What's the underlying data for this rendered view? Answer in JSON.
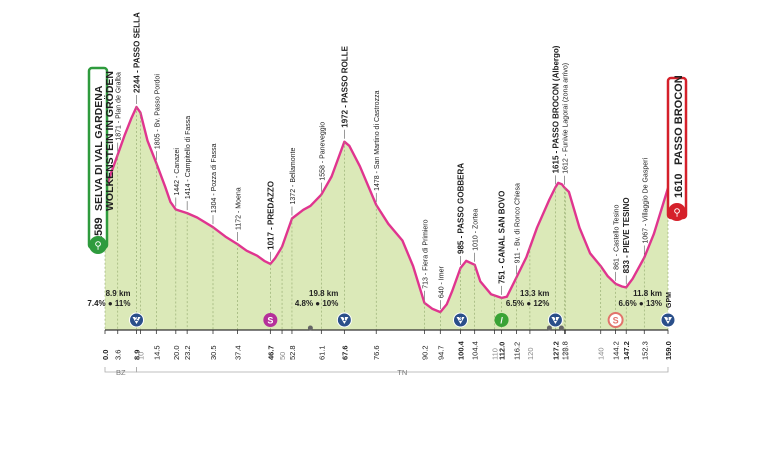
{
  "start": {
    "elevation": "1589",
    "name_line1": "SELVA DI VAL GARDENA",
    "name_line2": "WOLKENSTEIN IN GRÖDEN",
    "color": "#2e9b3d"
  },
  "finish": {
    "elevation": "1610",
    "name": "PASSO BROCON",
    "color": "#d5202a"
  },
  "colors": {
    "profile_fill": "#dbe9b8",
    "profile_line": "#e0358f",
    "axis": "#333333",
    "climb_badge": "#2a4f8a"
  },
  "chart_data": {
    "type": "area",
    "title": "",
    "xlabel": "",
    "ylabel": "",
    "xlim": [
      0,
      159
    ],
    "ylim": [
      500,
      2400
    ],
    "profile": {
      "x": [
        0,
        1.5,
        3.6,
        5.5,
        7.5,
        8.9,
        10,
        12,
        14.5,
        17,
        18.5,
        20,
        23.2,
        26,
        30.5,
        34,
        37.4,
        40,
        43,
        45,
        46.7,
        48,
        50,
        52.8,
        56,
        58,
        61.1,
        64,
        67.6,
        69,
        72,
        76.6,
        80,
        84,
        87,
        90.2,
        92.5,
        94.7,
        96.5,
        98,
        100.4,
        102,
        104.4,
        106,
        109,
        112,
        113.5,
        116.2,
        119,
        122,
        125.5,
        127.2,
        128,
        129,
        129.8,
        131,
        134,
        137,
        140,
        142,
        144.2,
        146,
        147.2,
        149,
        152.3,
        155,
        157,
        159
      ],
      "y": [
        1589,
        1710,
        1871,
        2020,
        2160,
        2244,
        2200,
        1980,
        1805,
        1620,
        1500,
        1442,
        1414,
        1380,
        1304,
        1230,
        1172,
        1120,
        1080,
        1040,
        1017,
        1060,
        1150,
        1372,
        1440,
        1470,
        1558,
        1700,
        1972,
        1940,
        1780,
        1478,
        1330,
        1200,
        1000,
        713,
        665,
        640,
        700,
        800,
        985,
        1040,
        1010,
        880,
        780,
        751,
        760,
        911,
        1070,
        1300,
        1520,
        1615,
        1650,
        1640,
        1612,
        1580,
        1300,
        1100,
        1000,
        920,
        861,
        840,
        833,
        900,
        1067,
        1250,
        1430,
        1610
      ]
    },
    "distance_ticks": [
      {
        "km": 0,
        "label": "0.0",
        "bold": true
      },
      {
        "km": 3.6,
        "label": "3.6",
        "bold": false
      },
      {
        "km": 8.9,
        "label": "8.9",
        "bold": true
      },
      {
        "km": 10,
        "label": "10",
        "bold": false,
        "minor": true
      },
      {
        "km": 14.5,
        "label": "14.5",
        "bold": false
      },
      {
        "km": 20,
        "label": "20.0",
        "bold": false
      },
      {
        "km": 23.2,
        "label": "23.2",
        "bold": false
      },
      {
        "km": 30.5,
        "label": "30.5",
        "bold": false
      },
      {
        "km": 37.4,
        "label": "37.4",
        "bold": false
      },
      {
        "km": 46.7,
        "label": "46.7",
        "bold": true
      },
      {
        "km": 50,
        "label": "50",
        "bold": false,
        "minor": true
      },
      {
        "km": 52.8,
        "label": "52.8",
        "bold": false
      },
      {
        "km": 61.1,
        "label": "61.1",
        "bold": false
      },
      {
        "km": 67.6,
        "label": "67.6",
        "bold": true
      },
      {
        "km": 76.6,
        "label": "76.6",
        "bold": false
      },
      {
        "km": 90.2,
        "label": "90.2",
        "bold": false
      },
      {
        "km": 94.7,
        "label": "94.7",
        "bold": false
      },
      {
        "km": 100.4,
        "label": "100.4",
        "bold": true
      },
      {
        "km": 104.4,
        "label": "104.4",
        "bold": false
      },
      {
        "km": 110,
        "label": "110",
        "bold": false,
        "minor": true
      },
      {
        "km": 112,
        "label": "112.0",
        "bold": true
      },
      {
        "km": 116.2,
        "label": "116.2",
        "bold": false
      },
      {
        "km": 120,
        "label": "120",
        "bold": false,
        "minor": true
      },
      {
        "km": 127.2,
        "label": "127.2",
        "bold": true
      },
      {
        "km": 129.8,
        "label": "129.8",
        "bold": false
      },
      {
        "km": 130,
        "label": "130",
        "bold": false,
        "minor": true
      },
      {
        "km": 140,
        "label": "140",
        "bold": false,
        "minor": true
      },
      {
        "km": 144.2,
        "label": "144.2",
        "bold": false
      },
      {
        "km": 147.2,
        "label": "147.2",
        "bold": true
      },
      {
        "km": 152.3,
        "label": "152.3",
        "bold": false
      },
      {
        "km": 159,
        "label": "159.0",
        "bold": true
      }
    ],
    "minor_km": [
      20,
      30,
      40,
      50,
      60,
      70,
      80,
      90,
      100,
      110,
      120,
      130,
      140,
      150
    ],
    "waypoints": [
      {
        "km": 3.6,
        "elev": 1871,
        "label": "1871 - Plan de Gralba",
        "bold": false
      },
      {
        "km": 8.9,
        "elev": 2244,
        "label": "2244 - PASSO SELLA",
        "bold": true
      },
      {
        "km": 14.5,
        "elev": 1805,
        "label": "1805 - Bv. Passo Pordoi",
        "bold": false
      },
      {
        "km": 20,
        "elev": 1442,
        "label": "1442 - Canazei",
        "bold": false
      },
      {
        "km": 23.2,
        "elev": 1414,
        "label": "1414 - Campitello di Fassa",
        "bold": false
      },
      {
        "km": 30.5,
        "elev": 1304,
        "label": "1304 - Pozza di Fassa",
        "bold": false
      },
      {
        "km": 37.4,
        "elev": 1172,
        "label": "1172 - Moena",
        "bold": false
      },
      {
        "km": 46.7,
        "elev": 1017,
        "label": "1017 - PREDAZZO",
        "bold": true
      },
      {
        "km": 52.8,
        "elev": 1372,
        "label": "1372 - Bellamonte",
        "bold": false
      },
      {
        "km": 61.1,
        "elev": 1558,
        "label": "1558 - Paneveggio",
        "bold": false
      },
      {
        "km": 67.6,
        "elev": 1972,
        "label": "1972 - PASSO ROLLE",
        "bold": true
      },
      {
        "km": 76.6,
        "elev": 1478,
        "label": "1478 - San Martino di Castrozza",
        "bold": false
      },
      {
        "km": 90.2,
        "elev": 713,
        "label": "713 - Fiera di Primiero",
        "bold": false
      },
      {
        "km": 94.7,
        "elev": 640,
        "label": "640 - Imer",
        "bold": false
      },
      {
        "km": 100.4,
        "elev": 985,
        "label": "985 - PASSO GOBBERA",
        "bold": true
      },
      {
        "km": 104.4,
        "elev": 1010,
        "label": "1010 - Zortea",
        "bold": false
      },
      {
        "km": 112,
        "elev": 751,
        "label": "751 - CANAL SAN BOVO",
        "bold": true
      },
      {
        "km": 116.2,
        "elev": 911,
        "label": "911 - Bv. di Ronco Chiesa",
        "bold": false
      },
      {
        "km": 127.2,
        "elev": 1615,
        "label": "1615 - PASSO BROCON (Albergo)",
        "bold": true
      },
      {
        "km": 129.8,
        "elev": 1612,
        "label": "1612 - Funivie Lagorai (zona arrivo)",
        "bold": false
      },
      {
        "km": 144.2,
        "elev": 861,
        "label": "861 - Castello Tesino",
        "bold": false
      },
      {
        "km": 147.2,
        "elev": 833,
        "label": "833 - PIEVE TESINO",
        "bold": true
      },
      {
        "km": 152.3,
        "elev": 1067,
        "label": "1067 - Villaggio De Gasperi",
        "bold": false
      }
    ],
    "climbs": [
      {
        "line1": "8.9 km",
        "line2": "7.4% ● 11%",
        "anchor_km": 8.9,
        "side": "left"
      },
      {
        "line1": "19.8 km",
        "line2": "4.8% ● 10%",
        "anchor_km": 67.6,
        "side": "left"
      },
      {
        "line1": "13.3 km",
        "line2": "6.5% ● 12%",
        "anchor_km": 127.2,
        "side": "left"
      },
      {
        "line1": "11.8 km",
        "line2": "6.6% ● 13%",
        "anchor_km": 159,
        "side": "left"
      }
    ],
    "badges": [
      {
        "km": 8.9,
        "kind": "gpm",
        "text": "2",
        "color": "#2a4f8a"
      },
      {
        "km": 46.7,
        "kind": "sprint",
        "text": "S",
        "color": "#b5309a"
      },
      {
        "km": 67.6,
        "kind": "gpm",
        "text": "1",
        "color": "#2a4f8a"
      },
      {
        "km": 100.4,
        "kind": "gpm",
        "text": "3",
        "color": "#2a4f8a"
      },
      {
        "km": 112,
        "kind": "feed",
        "text": "/",
        "color": "#3aa335"
      },
      {
        "km": 127.2,
        "kind": "gpm",
        "text": "1",
        "color": "#2a4f8a"
      },
      {
        "km": 144.2,
        "kind": "bonus",
        "text": "S",
        "color": "#e2736b"
      },
      {
        "km": 159,
        "kind": "gpm",
        "text": "1",
        "color": "#2a4f8a"
      }
    ],
    "gpm_finish_label": "GPM",
    "regions": [
      {
        "label": "BZ",
        "from_km": 0,
        "to_km": 8.9
      },
      {
        "label": "TN",
        "from_km": 8.9,
        "to_km": 159
      }
    ]
  }
}
